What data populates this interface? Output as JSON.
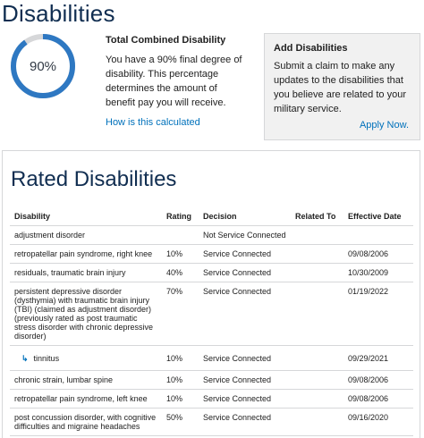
{
  "page": {
    "title": "Disabilities"
  },
  "rating": {
    "percent_label": "90%",
    "percent": 90,
    "heading": "Total Combined Disability",
    "description": "You have a 90% final degree of disability. This percentage determines the amount of benefit pay you will receive.",
    "link": "How is this calculated",
    "ring_color": "#2e78c2",
    "track_color": "#d6d7d9"
  },
  "add_card": {
    "title": "Add Disabilities",
    "text": "Submit a claim to make any updates to the disabilities that you believe are related to your military service.",
    "link": "Apply Now."
  },
  "rated": {
    "title": "Rated Disabilities",
    "headers": {
      "disability": "Disability",
      "rating": "Rating",
      "decision": "Decision",
      "related_to": "Related To",
      "effective_date": "Effective Date"
    },
    "rows": [
      {
        "disability": "adjustment disorder",
        "rating": "",
        "decision": "Not Service Connected",
        "related_to": "",
        "effective_date": ""
      },
      {
        "disability": "retropatellar pain syndrome, right knee",
        "rating": "10%",
        "decision": "Service Connected",
        "related_to": "",
        "effective_date": "09/08/2006"
      },
      {
        "disability": "residuals, traumatic brain injury",
        "rating": "40%",
        "decision": "Service Connected",
        "related_to": "",
        "effective_date": "10/30/2009"
      },
      {
        "disability": "persistent depressive disorder (dysthymia) with traumatic brain injury (TBI) (claimed as adjustment disorder) (previously rated as post traumatic stress disorder with chronic depressive disorder)",
        "rating": "70%",
        "decision": "Service Connected",
        "related_to": "",
        "effective_date": "01/19/2022"
      },
      {
        "disability": "tinnitus",
        "rating": "10%",
        "decision": "Service Connected",
        "related_to": "",
        "effective_date": "09/29/2021"
      },
      {
        "disability": "chronic strain, lumbar spine",
        "rating": "10%",
        "decision": "Service Connected",
        "related_to": "",
        "effective_date": "09/08/2006"
      },
      {
        "disability": "retropatellar pain syndrome, left knee",
        "rating": "10%",
        "decision": "Service Connected",
        "related_to": "",
        "effective_date": "09/08/2006"
      },
      {
        "disability": "post concussion disorder, with cognitive difficulties and migraine headaches",
        "rating": "50%",
        "decision": "Service Connected",
        "related_to": "",
        "effective_date": "09/16/2020"
      }
    ]
  }
}
